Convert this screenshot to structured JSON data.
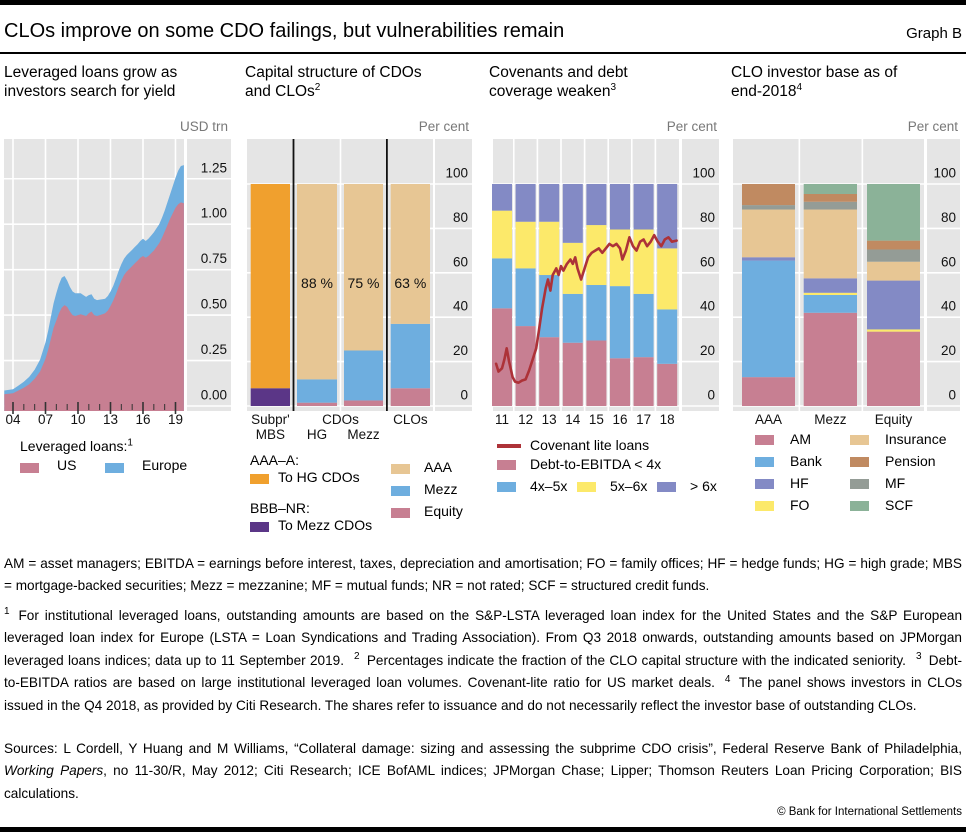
{
  "header": {
    "title": "CLOs improve on some CDO failings, but vulnerabilities remain",
    "graph_label": "Graph B"
  },
  "colors": {
    "rose": "#c77f92",
    "blue": "#6eaedf",
    "orange": "#f0a02e",
    "purple": "#5b3687",
    "tan": "#e7c694",
    "yellow": "#fce96a",
    "periwinkle": "#838ac5",
    "red": "#ad3238",
    "brown": "#c08a61",
    "gray": "#949c96",
    "green": "#8bb298",
    "panel_bg": "#e5e5e5",
    "unit_text": "#787878"
  },
  "panels": [
    {
      "title_lines": [
        "Leveraged loans grow as",
        "investors search for yield"
      ],
      "title_sup": "",
      "unit": "USD trn",
      "legend": {
        "heading": "Leveraged loans:",
        "heading_sup": "1",
        "items": [
          {
            "label": "US",
            "color": "rose"
          },
          {
            "label": "Europe",
            "color": "blue"
          }
        ]
      }
    },
    {
      "title_lines": [
        "Capital structure of CDOs",
        "and CLOs"
      ],
      "title_sup": "2",
      "unit": "Per cent",
      "legend": {
        "group1_heading": "AAA–A:",
        "group1_item": "To HG CDOs",
        "group2_heading": "BBB–NR:",
        "group2_item": "To Mezz CDOs",
        "right_items": [
          {
            "label": "AAA",
            "color": "tan"
          },
          {
            "label": "Mezz",
            "color": "blue"
          },
          {
            "label": "Equity",
            "color": "rose"
          }
        ]
      }
    },
    {
      "title_lines": [
        "Covenants and debt",
        "coverage weaken"
      ],
      "title_sup": "3",
      "unit": "Per cent",
      "legend": {
        "line_item": "Covenant lite loans",
        "row2_item": "Debt-to-EBITDA < 4x",
        "row3_items": [
          {
            "label": "4x–5x",
            "color": "blue"
          },
          {
            "label": "5x–6x",
            "color": "yellow"
          },
          {
            "label": "> 6x",
            "color": "periwinkle"
          }
        ]
      }
    },
    {
      "title_lines": [
        "CLO investor base as of",
        "end-2018"
      ],
      "title_sup": "4",
      "unit": "Per cent",
      "legend": {
        "col1": [
          {
            "label": "AM",
            "color": "rose"
          },
          {
            "label": "Bank",
            "color": "blue"
          },
          {
            "label": "HF",
            "color": "periwinkle"
          },
          {
            "label": "FO",
            "color": "yellow"
          }
        ],
        "col2": [
          {
            "label": "Insurance",
            "color": "tan"
          },
          {
            "label": "Pension",
            "color": "brown"
          },
          {
            "label": "MF",
            "color": "gray"
          },
          {
            "label": "SCF",
            "color": "green"
          }
        ]
      }
    }
  ],
  "chart_data": [
    {
      "id": "chart-loans",
      "type": "area",
      "title": "Leveraged loans grow as investors search for yield",
      "unit": "USD trn",
      "stacked": true,
      "ylim": [
        0,
        1.47
      ],
      "ylabel_ticks": [
        {
          "v": 0,
          "label": "0.00"
        },
        {
          "v": 0.25,
          "label": "0.25"
        },
        {
          "v": 0.5,
          "label": "0.50"
        },
        {
          "v": 0.75,
          "label": "0.75"
        },
        {
          "v": 1,
          "label": "1.00"
        },
        {
          "v": 1.25,
          "label": "1.25"
        }
      ],
      "x_major": [
        {
          "v": 2004,
          "label": "04"
        },
        {
          "v": 2007,
          "label": "07"
        },
        {
          "v": 2010,
          "label": "10"
        },
        {
          "v": 2013,
          "label": "13"
        },
        {
          "v": 2016,
          "label": "16"
        },
        {
          "v": 2019,
          "label": "19"
        }
      ],
      "x": [
        2003.2,
        2004,
        2004.5,
        2005,
        2005.5,
        2006,
        2006.5,
        2007,
        2007.25,
        2007.5,
        2007.75,
        2008,
        2008.25,
        2008.5,
        2008.75,
        2009,
        2009.25,
        2009.5,
        2009.75,
        2010,
        2010.25,
        2010.5,
        2010.75,
        2011,
        2011.25,
        2011.5,
        2011.75,
        2012,
        2012.25,
        2012.5,
        2012.75,
        2013,
        2013.25,
        2013.5,
        2013.75,
        2014,
        2014.25,
        2014.5,
        2014.75,
        2015,
        2015.25,
        2015.5,
        2015.75,
        2016,
        2016.25,
        2016.5,
        2016.75,
        2017,
        2017.25,
        2017.5,
        2017.75,
        2018,
        2018.25,
        2018.5,
        2018.75,
        2019,
        2019.25,
        2019.5,
        2019.78
      ],
      "series": [
        {
          "name": "US",
          "color": "rose",
          "values": [
            0.065,
            0.07,
            0.085,
            0.1,
            0.12,
            0.15,
            0.19,
            0.26,
            0.31,
            0.37,
            0.43,
            0.47,
            0.51,
            0.54,
            0.555,
            0.545,
            0.52,
            0.5,
            0.495,
            0.5,
            0.505,
            0.5,
            0.495,
            0.51,
            0.52,
            0.5,
            0.495,
            0.5,
            0.505,
            0.51,
            0.525,
            0.55,
            0.58,
            0.615,
            0.655,
            0.69,
            0.72,
            0.74,
            0.755,
            0.77,
            0.785,
            0.8,
            0.815,
            0.825,
            0.815,
            0.825,
            0.84,
            0.855,
            0.875,
            0.895,
            0.925,
            0.96,
            0.995,
            1.03,
            1.06,
            1.09,
            1.11,
            1.12,
            1.115
          ]
        },
        {
          "name": "Europe",
          "color": "blue",
          "values": [
            0.02,
            0.022,
            0.027,
            0.033,
            0.04,
            0.05,
            0.065,
            0.09,
            0.105,
            0.12,
            0.135,
            0.15,
            0.16,
            0.165,
            0.16,
            0.145,
            0.135,
            0.13,
            0.125,
            0.12,
            0.115,
            0.11,
            0.105,
            0.1,
            0.095,
            0.09,
            0.0875,
            0.085,
            0.0825,
            0.08,
            0.08,
            0.08,
            0.08,
            0.085,
            0.0875,
            0.09,
            0.09,
            0.09,
            0.09,
            0.09,
            0.09,
            0.09,
            0.0925,
            0.095,
            0.0925,
            0.095,
            0.0975,
            0.1,
            0.1025,
            0.105,
            0.11,
            0.115,
            0.125,
            0.135,
            0.15,
            0.165,
            0.185,
            0.2,
            0.21
          ]
        }
      ]
    },
    {
      "id": "chart-capital",
      "type": "stacked_bar",
      "unit": "Per cent",
      "yticks": [
        0,
        20,
        40,
        60,
        80,
        100
      ],
      "group_label": "CDOs",
      "bars": [
        {
          "top_label": "Subpr'",
          "bottom_label": "MBS",
          "annotation": "",
          "segments": [
            {
              "name": "BBB–NR: To Mezz CDOs",
              "color": "purple",
              "value": 8
            },
            {
              "name": "AAA–A: To HG CDOs",
              "color": "orange",
              "value": 92
            }
          ]
        },
        {
          "top_label": "",
          "bottom_label": "HG",
          "annotation": "88 %",
          "segments": [
            {
              "name": "Equity",
              "color": "rose",
              "value": 1.5
            },
            {
              "name": "Mezz",
              "color": "blue",
              "value": 10.5
            },
            {
              "name": "AAA",
              "color": "tan",
              "value": 88
            }
          ]
        },
        {
          "top_label": "",
          "bottom_label": "Mezz",
          "annotation": "75 %",
          "segments": [
            {
              "name": "Equity",
              "color": "rose",
              "value": 2.5
            },
            {
              "name": "Mezz",
              "color": "blue",
              "value": 22.5
            },
            {
              "name": "AAA",
              "color": "tan",
              "value": 75
            }
          ]
        },
        {
          "top_label": "CLOs",
          "bottom_label": "",
          "annotation": "63 %",
          "segments": [
            {
              "name": "Equity",
              "color": "rose",
              "value": 8
            },
            {
              "name": "Mezz",
              "color": "blue",
              "value": 29
            },
            {
              "name": "AAA",
              "color": "tan",
              "value": 63
            }
          ]
        }
      ]
    },
    {
      "id": "chart-covenants",
      "type": "stacked_bar_line",
      "unit": "Per cent",
      "yticks": [
        0,
        20,
        40,
        60,
        80,
        100
      ],
      "categories": [
        "11",
        "12",
        "13",
        "14",
        "15",
        "16",
        "17",
        "18"
      ],
      "series": [
        {
          "name": "Debt-to-EBITDA < 4x",
          "color": "rose",
          "values": [
            44,
            36,
            31,
            28.5,
            29.5,
            21.5,
            22,
            19
          ]
        },
        {
          "name": "4x–5x",
          "color": "blue",
          "values": [
            22.5,
            26,
            28,
            22,
            25,
            32.5,
            28.5,
            24.5
          ]
        },
        {
          "name": "5x–6x",
          "color": "yellow",
          "values": [
            21.5,
            21,
            24,
            23,
            27,
            25.5,
            29,
            27.5
          ]
        },
        {
          "name": "> 6x",
          "color": "periwinkle",
          "values": [
            12,
            17,
            17,
            26.5,
            18.5,
            20.5,
            20.5,
            29
          ]
        }
      ],
      "line": {
        "name": "Covenant lite loans",
        "color": "red",
        "points": [
          [
            2010.75,
            19
          ],
          [
            2010.85,
            15.5
          ],
          [
            2011.0,
            17
          ],
          [
            2011.1,
            21
          ],
          [
            2011.2,
            26
          ],
          [
            2011.3,
            20
          ],
          [
            2011.45,
            13
          ],
          [
            2011.55,
            11
          ],
          [
            2011.7,
            10.5
          ],
          [
            2011.85,
            11.5
          ],
          [
            2012.0,
            12
          ],
          [
            2012.15,
            16
          ],
          [
            2012.3,
            21
          ],
          [
            2012.45,
            26
          ],
          [
            2012.55,
            33
          ],
          [
            2012.7,
            44
          ],
          [
            2012.85,
            53
          ],
          [
            2012.95,
            57
          ],
          [
            2013.05,
            52
          ],
          [
            2013.15,
            59
          ],
          [
            2013.3,
            62
          ],
          [
            2013.4,
            59
          ],
          [
            2013.5,
            63
          ],
          [
            2013.6,
            61
          ],
          [
            2013.75,
            64
          ],
          [
            2013.9,
            66
          ],
          [
            2014.0,
            64
          ],
          [
            2014.1,
            67
          ],
          [
            2014.2,
            62
          ],
          [
            2014.35,
            57
          ],
          [
            2014.5,
            62
          ],
          [
            2014.65,
            67
          ],
          [
            2014.8,
            69
          ],
          [
            2014.95,
            70
          ],
          [
            2015.1,
            71
          ],
          [
            2015.25,
            69
          ],
          [
            2015.4,
            71
          ],
          [
            2015.55,
            73
          ],
          [
            2015.7,
            72
          ],
          [
            2015.85,
            73
          ],
          [
            2016.0,
            71
          ],
          [
            2016.1,
            66
          ],
          [
            2016.25,
            70
          ],
          [
            2016.4,
            76
          ],
          [
            2016.55,
            72
          ],
          [
            2016.7,
            70
          ],
          [
            2016.85,
            74
          ],
          [
            2017.0,
            75
          ],
          [
            2017.15,
            72
          ],
          [
            2017.3,
            74
          ],
          [
            2017.45,
            77
          ],
          [
            2017.6,
            74
          ],
          [
            2017.75,
            72
          ],
          [
            2017.9,
            75
          ],
          [
            2018.05,
            76
          ],
          [
            2018.2,
            74
          ],
          [
            2018.4,
            74.5
          ]
        ]
      }
    },
    {
      "id": "chart-investors",
      "type": "stacked_bar",
      "unit": "Per cent",
      "yticks": [
        0,
        20,
        40,
        60,
        80,
        100
      ],
      "categories": [
        "AAA",
        "Mezz",
        "Equity"
      ],
      "series": [
        {
          "name": "AM",
          "color": "rose",
          "values": [
            13,
            42,
            33.5
          ]
        },
        {
          "name": "Bank",
          "color": "blue",
          "values": [
            52.5,
            8,
            0
          ]
        },
        {
          "name": "FO",
          "color": "yellow",
          "values": [
            0,
            1,
            1
          ]
        },
        {
          "name": "HF",
          "color": "periwinkle",
          "values": [
            1.5,
            6.5,
            22
          ]
        },
        {
          "name": "Insurance",
          "color": "tan",
          "values": [
            21.5,
            31,
            8.5
          ]
        },
        {
          "name": "MF",
          "color": "gray",
          "values": [
            2,
            3.5,
            5.5
          ]
        },
        {
          "name": "Pension",
          "color": "brown",
          "values": [
            9.5,
            3.5,
            4
          ]
        },
        {
          "name": "SCF",
          "color": "green",
          "values": [
            0,
            4.5,
            25.5
          ]
        }
      ]
    }
  ],
  "notes": {
    "abbreviations": "AM = asset managers; EBITDA = earnings before interest, taxes, depreciation and amortisation; FO = family offices; HF = hedge funds; HG = high grade; MBS = mortgage-backed securities; Mezz = mezzanine; MF = mutual funds; NR = not rated; SCF = structured credit funds.",
    "footnotes": [
      {
        "marker": "1",
        "text": "For institutional leveraged loans, outstanding amounts are based on the S&P-LSTA leveraged loan index for the United States and the S&P European leveraged loan index for Europe (LSTA = Loan Syndications and Trading Association). From Q3 2018 onwards, outstanding amounts based on JPMorgan leveraged loans indices; data up to 11 September 2019."
      },
      {
        "marker": "2",
        "text": "Percentages indicate the fraction of the CLO capital structure with the indicated seniority."
      },
      {
        "marker": "3",
        "text": "Debt-to-EBITDA ratios are based on large institutional leveraged loan volumes. Covenant-lite ratio for US market deals."
      },
      {
        "marker": "4",
        "text": "The panel shows investors in CLOs issued in the Q4 2018, as provided by Citi Research. The shares refer to issuance and do not necessarily reflect the investor base of outstanding CLOs."
      }
    ],
    "sources_prefix": "Sources: L Cordell, Y Huang and M Williams, “Collateral damage: sizing and assessing the subprime CDO crisis”, Federal Reserve Bank of Philadelphia, ",
    "sources_italic": "Working Papers",
    "sources_suffix": ", no 11-30/R, May 2012; Citi Research; ICE BofAML indices; JPMorgan Chase; Lipper; Thomson Reuters Loan Pricing Corporation; BIS calculations.",
    "copyright": "© Bank for International Settlements"
  }
}
